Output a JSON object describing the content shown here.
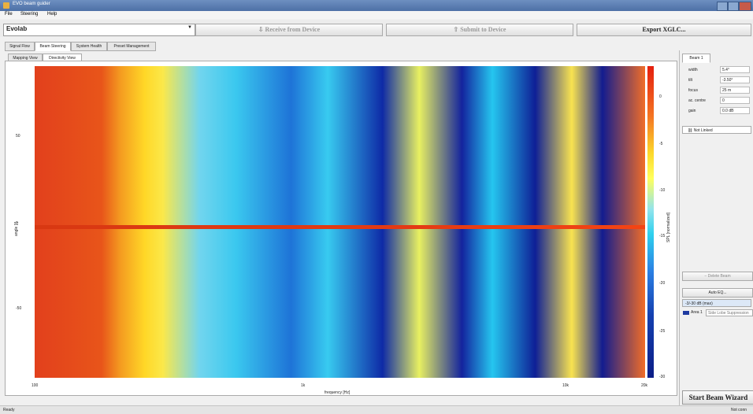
{
  "window": {
    "title": "EVO beam guider"
  },
  "menu": [
    "File",
    "Steering",
    "Help"
  ],
  "toolbar": {
    "device": "Evolab",
    "receive_label": "Receive from Device",
    "submit_label": "Submit to Device",
    "export_label": "Export XGLC..."
  },
  "tabs": [
    "Signal Flow",
    "Beam Steering",
    "System Health",
    "Preset Management"
  ],
  "subtabs": [
    "Mapping View",
    "Directivity View"
  ],
  "plot": {
    "xlabel": "frequency [Hz]",
    "ylabel": "angle [°]",
    "colorbar_label": "SPL [normalized]",
    "y_ticks": [
      "50",
      "0",
      "-50"
    ],
    "x_ticks": [
      "100",
      "1k",
      "10k",
      "20k"
    ],
    "colorbar_ticks": [
      "0",
      "-5",
      "-10",
      "-15",
      "-20",
      "-25",
      "-30"
    ],
    "colors": {
      "high": "#e41e0e",
      "low": "#0b1d86"
    }
  },
  "panel": {
    "tab": "Beam 1",
    "fields": [
      {
        "label": "width",
        "value": "5.4°"
      },
      {
        "label": "tilt",
        "value": "-3.50°"
      },
      {
        "label": "focus",
        "value": "25 m"
      },
      {
        "label": "ac. centre",
        "value": "0"
      },
      {
        "label": "gain",
        "value": "0.0 dB"
      }
    ],
    "link_select": "Not Linked",
    "delete_label": "Delete Beam",
    "auto_eq_label": "Auto EQ...",
    "target_label": "-3/-30 dB (max)",
    "area_label": "Area 1",
    "sidelobe_label": "Side Lobe Suppression",
    "start_wizard_label": "Start Beam Wizard"
  },
  "status": {
    "left": "Ready",
    "right": "Not conn"
  }
}
